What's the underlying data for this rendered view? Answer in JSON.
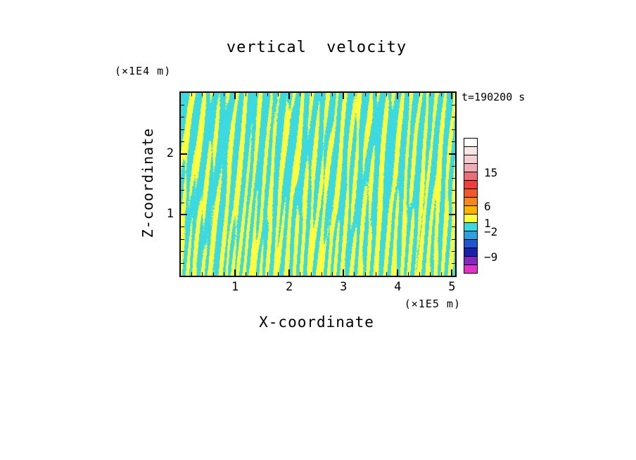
{
  "figure": {
    "background": "#ffffff",
    "text_color": "#000000"
  },
  "chart_data": {
    "type": "heatmap",
    "title": "vertical velocity",
    "time_annotation": "t=190200 s",
    "xlabel": "X-coordinate",
    "ylabel": "Z-coordinate",
    "x_units_label": "(×1E5 m)",
    "y_units_label": "(×1E4 m)",
    "xlim": [
      0,
      5.06
    ],
    "ylim": [
      0,
      3.0
    ],
    "x_major_ticks": [
      1,
      2,
      3,
      4,
      5
    ],
    "y_major_ticks": [
      1,
      2
    ],
    "minor_tick_step": 0.2,
    "grid": false,
    "legend_position": "colorbar-right",
    "field": {
      "description": "Turbulent two-tone vertical-velocity field: narrow near-vertical streaks alternating between the cyan (-2..1) band and the yellow (1..6) band; streaks are thin and dense near the lower boundary and merge into broader cyan patches aloft.",
      "yellow_band_color": "#ffff3d",
      "cyan_band_color": "#3cd9e0",
      "yellow_band_range": [
        1,
        6
      ],
      "cyan_band_range": [
        -2,
        1
      ],
      "pattern_seed": 11,
      "pattern_components": 14
    },
    "colorbar": {
      "position": "right",
      "segment_colors_top_to_bottom": [
        "#ffffff",
        "#f8e6e6",
        "#f3ced2",
        "#eeacb6",
        "#e87078",
        "#ee3f3e",
        "#f2582c",
        "#f6871e",
        "#fbb400",
        "#ffff3d",
        "#3cd9e0",
        "#2f9fe0",
        "#2255d0",
        "#1b20a8",
        "#8428c4",
        "#e133c8"
      ],
      "labels": [
        {
          "text": "15",
          "at_boundary_after_segment": 4
        },
        {
          "text": "6",
          "at_boundary_after_segment": 8
        },
        {
          "text": "1",
          "at_boundary_after_segment": 10
        },
        {
          "text": "−2",
          "at_boundary_after_segment": 11
        },
        {
          "text": "−9",
          "at_boundary_after_segment": 14
        }
      ]
    }
  }
}
